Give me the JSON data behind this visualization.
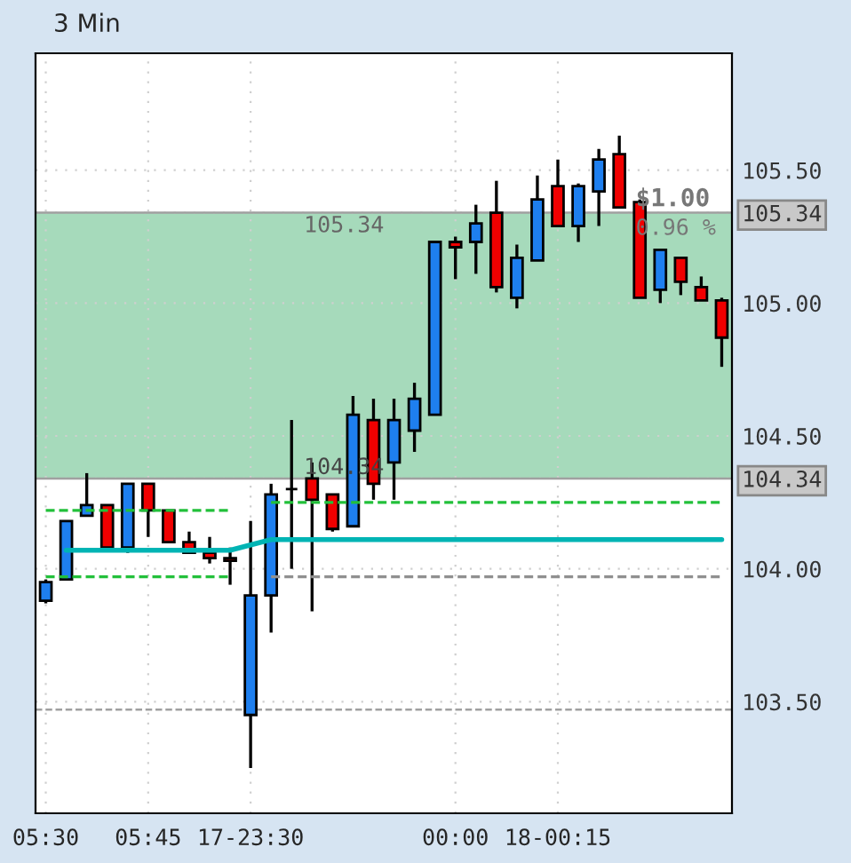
{
  "chart_data": {
    "type": "candlestick",
    "title": "3 Min",
    "categories": [
      "05:30",
      null,
      null,
      null,
      null,
      "05:45",
      null,
      null,
      null,
      null,
      "17-23:30",
      null,
      null,
      null,
      null,
      null,
      null,
      null,
      null,
      null,
      "00:00",
      null,
      null,
      null,
      null,
      "18-00:15",
      null,
      null,
      null,
      null,
      null,
      null,
      null,
      null
    ],
    "ohlc": [
      [
        103.88,
        103.96,
        103.87,
        103.95
      ],
      [
        103.96,
        104.18,
        103.96,
        104.18
      ],
      [
        104.2,
        104.36,
        104.2,
        104.24
      ],
      [
        104.24,
        104.24,
        104.08,
        104.08
      ],
      [
        104.08,
        104.32,
        104.06,
        104.32
      ],
      [
        104.32,
        104.32,
        104.12,
        104.22
      ],
      [
        104.22,
        104.22,
        104.1,
        104.1
      ],
      [
        104.1,
        104.14,
        104.06,
        104.06
      ],
      [
        104.06,
        104.12,
        104.02,
        104.04
      ],
      [
        104.04,
        104.08,
        103.94,
        104.03
      ],
      [
        103.45,
        104.18,
        103.25,
        103.9
      ],
      [
        103.9,
        104.32,
        103.76,
        104.28
      ],
      [
        104.3,
        104.56,
        104.0,
        104.3
      ],
      [
        104.34,
        104.4,
        103.84,
        104.26
      ],
      [
        104.28,
        104.28,
        104.14,
        104.15
      ],
      [
        104.16,
        104.65,
        104.16,
        104.58
      ],
      [
        104.56,
        104.64,
        104.26,
        104.32
      ],
      [
        104.4,
        104.64,
        104.26,
        104.56
      ],
      [
        104.52,
        104.7,
        104.44,
        104.64
      ],
      [
        104.58,
        105.23,
        104.58,
        105.23
      ],
      [
        105.23,
        105.25,
        105.09,
        105.21
      ],
      [
        105.23,
        105.37,
        105.11,
        105.3
      ],
      [
        105.34,
        105.46,
        105.04,
        105.06
      ],
      [
        105.02,
        105.22,
        104.98,
        105.17
      ],
      [
        105.16,
        105.48,
        105.16,
        105.39
      ],
      [
        105.44,
        105.54,
        105.29,
        105.29
      ],
      [
        105.29,
        105.45,
        105.23,
        105.44
      ],
      [
        105.42,
        105.58,
        105.29,
        105.54
      ],
      [
        105.56,
        105.63,
        105.36,
        105.36
      ],
      [
        105.38,
        105.39,
        105.02,
        105.02
      ],
      [
        105.05,
        105.2,
        105.0,
        105.2
      ],
      [
        105.17,
        105.17,
        105.03,
        105.08
      ],
      [
        105.06,
        105.1,
        105.01,
        105.01
      ],
      [
        105.01,
        105.02,
        104.76,
        104.87
      ]
    ],
    "colors": [
      "#1e7fef",
      "#1e7fef",
      "#1e7fef",
      "#f00000",
      "#1e7fef",
      "#f00000",
      "#f00000",
      "#f00000",
      "#f00000",
      "#f00000",
      "#1e7fef",
      "#1e7fef",
      "#000000",
      "#f00000",
      "#f00000",
      "#1e7fef",
      "#f00000",
      "#1e7fef",
      "#1e7fef",
      "#1e7fef",
      "#f00000",
      "#1e7fef",
      "#f00000",
      "#1e7fef",
      "#1e7fef",
      "#f00000",
      "#1e7fef",
      "#1e7fef",
      "#f00000",
      "#f00000",
      "#1e7fef",
      "#f00000",
      "#f00000",
      "#f00000"
    ],
    "series": [
      {
        "type": "line",
        "color": "#00b4b4",
        "line_style": "solid",
        "values": [
          null,
          104.07,
          104.07,
          104.07,
          104.07,
          104.07,
          104.07,
          104.07,
          104.07,
          104.07,
          104.09,
          104.11,
          104.11,
          104.11,
          104.11,
          104.11,
          104.11,
          104.11,
          104.11,
          104.11,
          104.11,
          104.11,
          104.11,
          104.11,
          104.11,
          104.11,
          104.11,
          104.11,
          104.11,
          104.11,
          104.11,
          104.11,
          104.11,
          104.11
        ]
      },
      {
        "type": "line",
        "color": "#22c03a",
        "line_style": "dashed",
        "values": [
          104.22,
          104.22,
          104.22,
          104.22,
          104.22,
          104.22,
          104.22,
          104.22,
          104.22,
          104.22,
          null,
          null,
          null,
          null,
          null,
          null,
          null,
          null,
          null,
          null,
          null,
          null,
          null,
          null,
          null,
          null,
          null,
          null,
          null,
          null,
          null,
          null,
          null,
          null
        ]
      },
      {
        "type": "line",
        "color": "#22c03a",
        "line_style": "dashed",
        "values": [
          103.97,
          103.97,
          103.97,
          103.97,
          103.97,
          103.97,
          103.97,
          103.97,
          103.97,
          103.97,
          null,
          null,
          null,
          null,
          null,
          null,
          null,
          null,
          null,
          null,
          null,
          null,
          null,
          null,
          null,
          null,
          null,
          null,
          null,
          null,
          null,
          null,
          null,
          null
        ]
      },
      {
        "type": "line",
        "color": "#22c03a",
        "line_style": "dashed",
        "values": [
          null,
          null,
          null,
          null,
          null,
          null,
          null,
          null,
          null,
          null,
          null,
          104.25,
          104.25,
          104.25,
          104.25,
          104.25,
          104.25,
          104.25,
          104.25,
          104.25,
          104.25,
          104.25,
          104.25,
          104.25,
          104.25,
          104.25,
          104.25,
          104.25,
          104.25,
          104.25,
          104.25,
          104.25,
          104.25,
          104.25
        ]
      },
      {
        "type": "line",
        "color": "#909090",
        "line_style": "dashed",
        "values": [
          null,
          null,
          null,
          null,
          null,
          null,
          null,
          null,
          null,
          null,
          null,
          103.97,
          103.97,
          103.97,
          103.97,
          103.97,
          103.97,
          103.97,
          103.97,
          103.97,
          103.97,
          103.97,
          103.97,
          103.97,
          103.97,
          103.97,
          103.97,
          103.97,
          103.97,
          103.97,
          103.97,
          103.97,
          103.97,
          103.97
        ]
      }
    ],
    "ref_lines": [
      {
        "axis": "y",
        "value": 105.34,
        "color": "#a0a0a0",
        "line_style": "solid"
      },
      {
        "axis": "y",
        "value": 104.34,
        "color": "#a0a0a0",
        "line_style": "solid"
      },
      {
        "axis": "y",
        "value": 103.47,
        "color": "#a0a0a0",
        "line_style": "dashed"
      }
    ],
    "bands": [
      {
        "axis": "y",
        "from": 104.34,
        "to": 105.34,
        "color": "#9cd6b4"
      }
    ],
    "annotations": [
      {
        "text": "105.34",
        "y": 105.34
      },
      {
        "text": "104.34",
        "y": 104.34
      },
      {
        "text": "$1.00",
        "y": 105.34
      },
      {
        "text": "0.96 %",
        "y": 105.34
      }
    ],
    "ylim": [
      103.08,
      105.94
    ],
    "yticks": [
      {
        "value": 103.5,
        "label": "103.50"
      },
      {
        "value": 104.0,
        "label": "104.00"
      },
      {
        "value": 104.34,
        "label": "104.34"
      },
      {
        "value": 104.5,
        "label": "104.50"
      },
      {
        "value": 105.0,
        "label": "105.00"
      },
      {
        "value": 105.34,
        "label": "105.34"
      },
      {
        "value": 105.5,
        "label": "105.50"
      }
    ],
    "grid": true,
    "marker": "none"
  }
}
